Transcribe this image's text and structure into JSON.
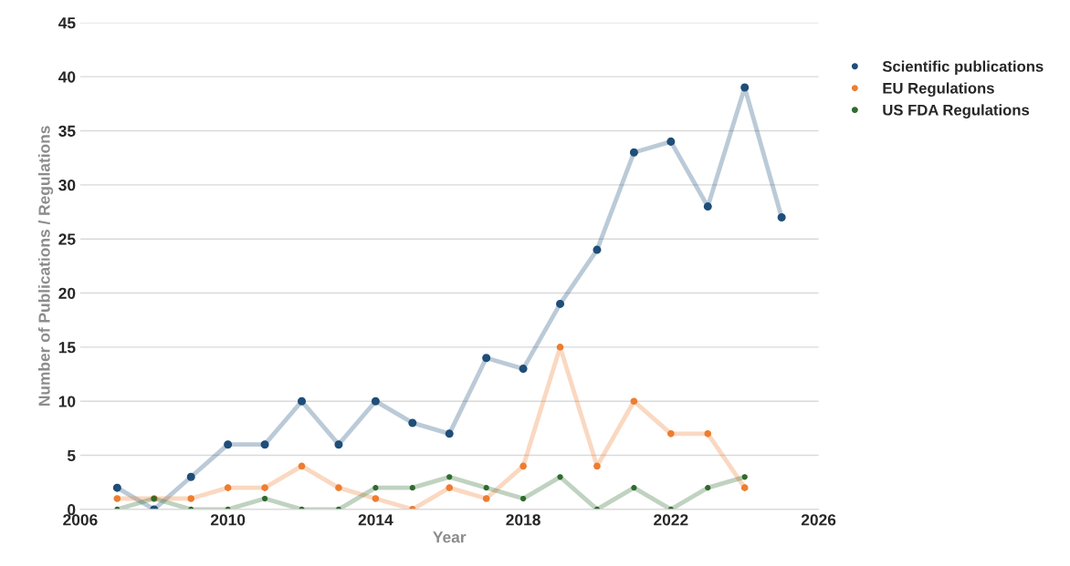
{
  "chart_data": {
    "type": "line",
    "xlabel": "Year",
    "ylabel": "Number of Publications / Regulations",
    "x": [
      2007,
      2008,
      2009,
      2010,
      2011,
      2012,
      2013,
      2014,
      2015,
      2016,
      2017,
      2018,
      2019,
      2020,
      2021,
      2022,
      2023,
      2024,
      2025
    ],
    "series": [
      {
        "name": "Scientific publications",
        "color": "#1f4e79",
        "values": [
          2,
          0,
          3,
          6,
          6,
          10,
          6,
          10,
          8,
          7,
          14,
          13,
          19,
          24,
          33,
          34,
          28,
          39,
          27
        ]
      },
      {
        "name": "EU Regulations",
        "color": "#ed7d31",
        "values": [
          1,
          1,
          1,
          2,
          2,
          4,
          2,
          1,
          0,
          2,
          1,
          4,
          15,
          4,
          10,
          7,
          7,
          2,
          null
        ]
      },
      {
        "name": "US FDA Regulations",
        "color": "#2e6b2e",
        "values": [
          0,
          1,
          0,
          0,
          1,
          0,
          0,
          2,
          2,
          3,
          2,
          1,
          3,
          0,
          2,
          0,
          2,
          3,
          null
        ]
      }
    ],
    "xlim": [
      2006,
      2026
    ],
    "xticks": [
      2006,
      2010,
      2014,
      2018,
      2022,
      2026
    ],
    "ylim": [
      0,
      45
    ],
    "yticks": [
      0,
      5,
      10,
      15,
      20,
      25,
      30,
      35,
      40,
      45
    ],
    "grid": "y",
    "legend": "right",
    "marker": "circle",
    "line_style": "solid"
  }
}
